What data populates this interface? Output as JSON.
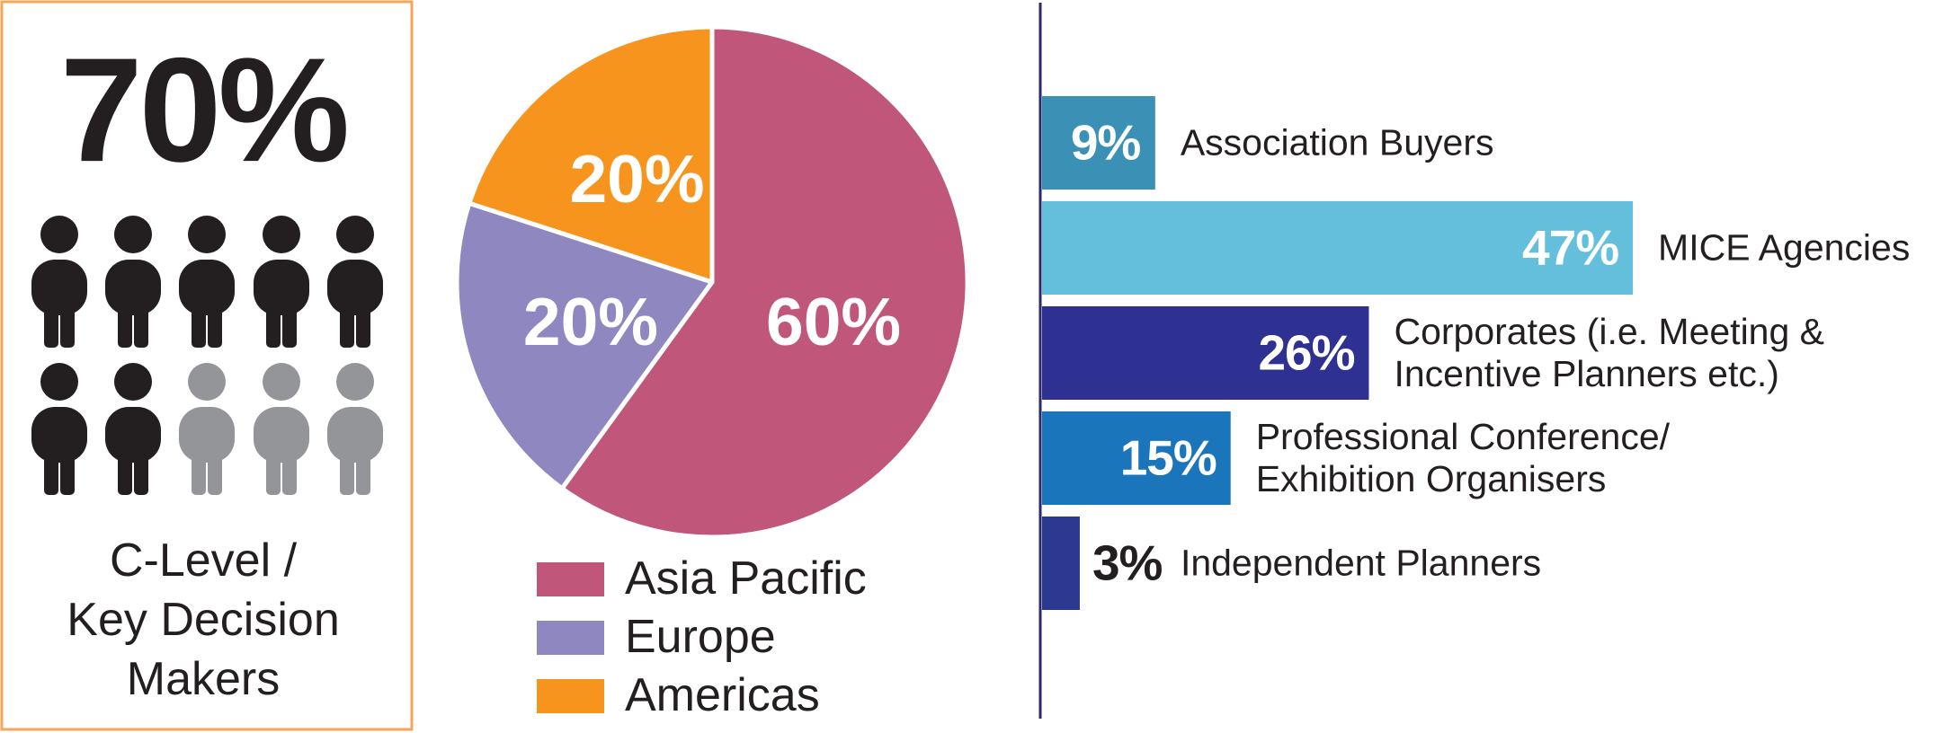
{
  "stat": {
    "value": 70,
    "value_label": "70%",
    "label": "C-Level /\nKey Decision\nMakers"
  },
  "chart_data": [
    {
      "type": "pie",
      "categories": [
        "Asia Pacific",
        "Europe",
        "Americas"
      ],
      "values": [
        60,
        20,
        20
      ],
      "value_labels": [
        "60%",
        "20%",
        "20%"
      ],
      "colors": [
        "#c0567a",
        "#8e87c0",
        "#f7941d"
      ],
      "legend": true
    },
    {
      "type": "bar",
      "orientation": "horizontal",
      "categories": [
        "Association Buyers",
        "MICE Agencies",
        "Corporates (i.e. Meeting &\nIncentive Planners etc.)",
        "Professional Conference/\nExhibition Organisers",
        "Independent Planners"
      ],
      "values": [
        9,
        47,
        26,
        15,
        3
      ],
      "value_labels": [
        "9%",
        "47%",
        "26%",
        "15%",
        "3%"
      ],
      "colors": [
        "#3a91b5",
        "#63bfdb",
        "#2e3192",
        "#1b75bb",
        "#2b3990"
      ]
    }
  ]
}
